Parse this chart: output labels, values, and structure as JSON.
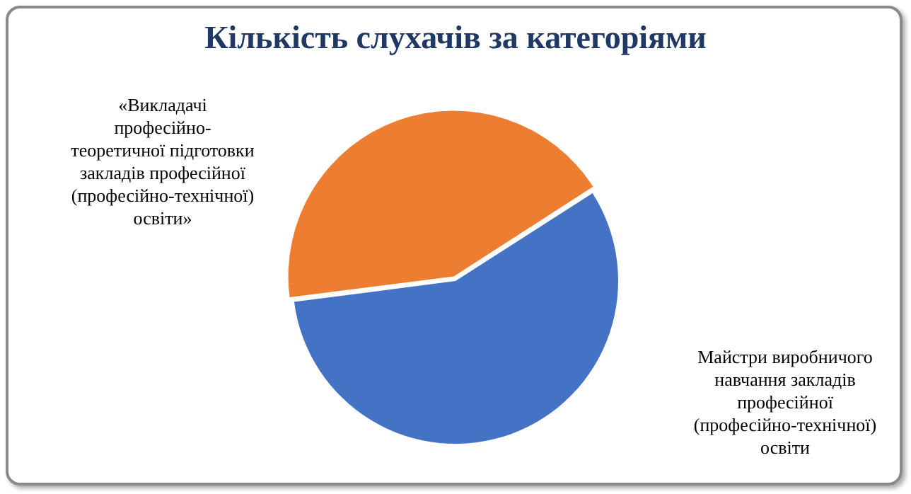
{
  "chart_data": {
    "type": "pie",
    "title": "Кількість слухачів за категоріями",
    "categories": [
      "«Викладачі професійно-теоретичної підготовки закладів професійної (професійно-технічної) освіти»",
      "Майстри виробничого навчання закладів професійної (професійно-технічної) освіти"
    ],
    "values": [
      43,
      57
    ],
    "colors": [
      "#ed7d31",
      "#4472c4"
    ],
    "legend": false
  }
}
